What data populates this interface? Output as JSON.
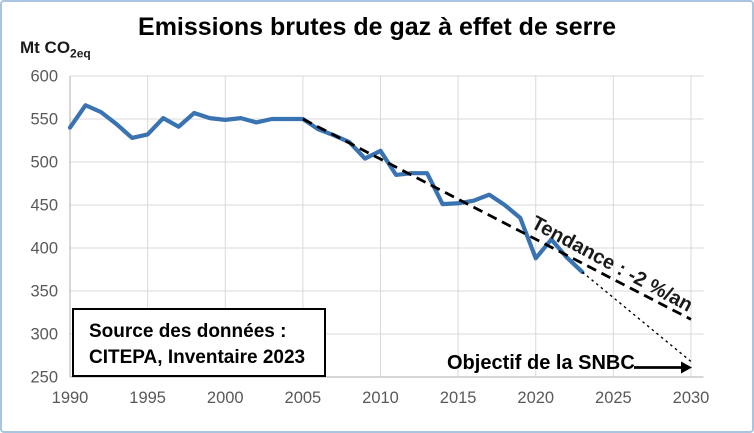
{
  "title": "Emissions brutes de gaz à effet de serre",
  "y_axis_unit": {
    "text": "Mt CO",
    "subscript": "2eq"
  },
  "source_box": {
    "line1": "Source des données :",
    "line2": "CITEPA, Inventaire 2023"
  },
  "annotations": {
    "trend_label": "Tendance : -2 %/an",
    "objective_label": "Objectif de la SNBC"
  },
  "colors": {
    "series_line": "#3a73b2",
    "trend_line": "#000000",
    "objective_line": "#000000",
    "gridline": "#d9d9d9",
    "axis_line": "#bfbfbf",
    "tick_text": "#595959",
    "frame_border": "#a9c4de"
  },
  "chart_data": {
    "type": "line",
    "title": "Emissions brutes de gaz à effet de serre",
    "ylabel": "Mt CO2eq",
    "xlabel": "",
    "xlim": [
      1990,
      2030
    ],
    "ylim": [
      250,
      600
    ],
    "x_ticks": [
      1990,
      1995,
      2000,
      2005,
      2010,
      2015,
      2020,
      2025,
      2030
    ],
    "y_ticks": [
      250,
      300,
      350,
      400,
      450,
      500,
      550,
      600
    ],
    "grid": true,
    "legend": false,
    "series": [
      {
        "name": "Emissions brutes de gaz à effet de serre (Mt CO2eq)",
        "x": [
          1990,
          1991,
          1992,
          1993,
          1994,
          1995,
          1996,
          1997,
          1998,
          1999,
          2000,
          2001,
          2002,
          2003,
          2004,
          2005,
          2006,
          2007,
          2008,
          2009,
          2010,
          2011,
          2012,
          2013,
          2014,
          2015,
          2016,
          2017,
          2018,
          2019,
          2020,
          2021,
          2022,
          2023
        ],
        "y": [
          540,
          566,
          558,
          544,
          528,
          532,
          551,
          541,
          557,
          551,
          549,
          551,
          546,
          550,
          550,
          550,
          538,
          531,
          523,
          504,
          513,
          485,
          487,
          487,
          451,
          452,
          455,
          462,
          450,
          435,
          388,
          410,
          389,
          372
        ]
      }
    ],
    "trend_line": {
      "label": "Tendance : -2 %/an",
      "x": [
        2005,
        2030
      ],
      "y": [
        550,
        317
      ],
      "style": "dashed"
    },
    "objective_line": {
      "label": "Objectif de la SNBC",
      "x": [
        2023,
        2030
      ],
      "y": [
        372,
        268
      ],
      "style": "dotted"
    }
  }
}
